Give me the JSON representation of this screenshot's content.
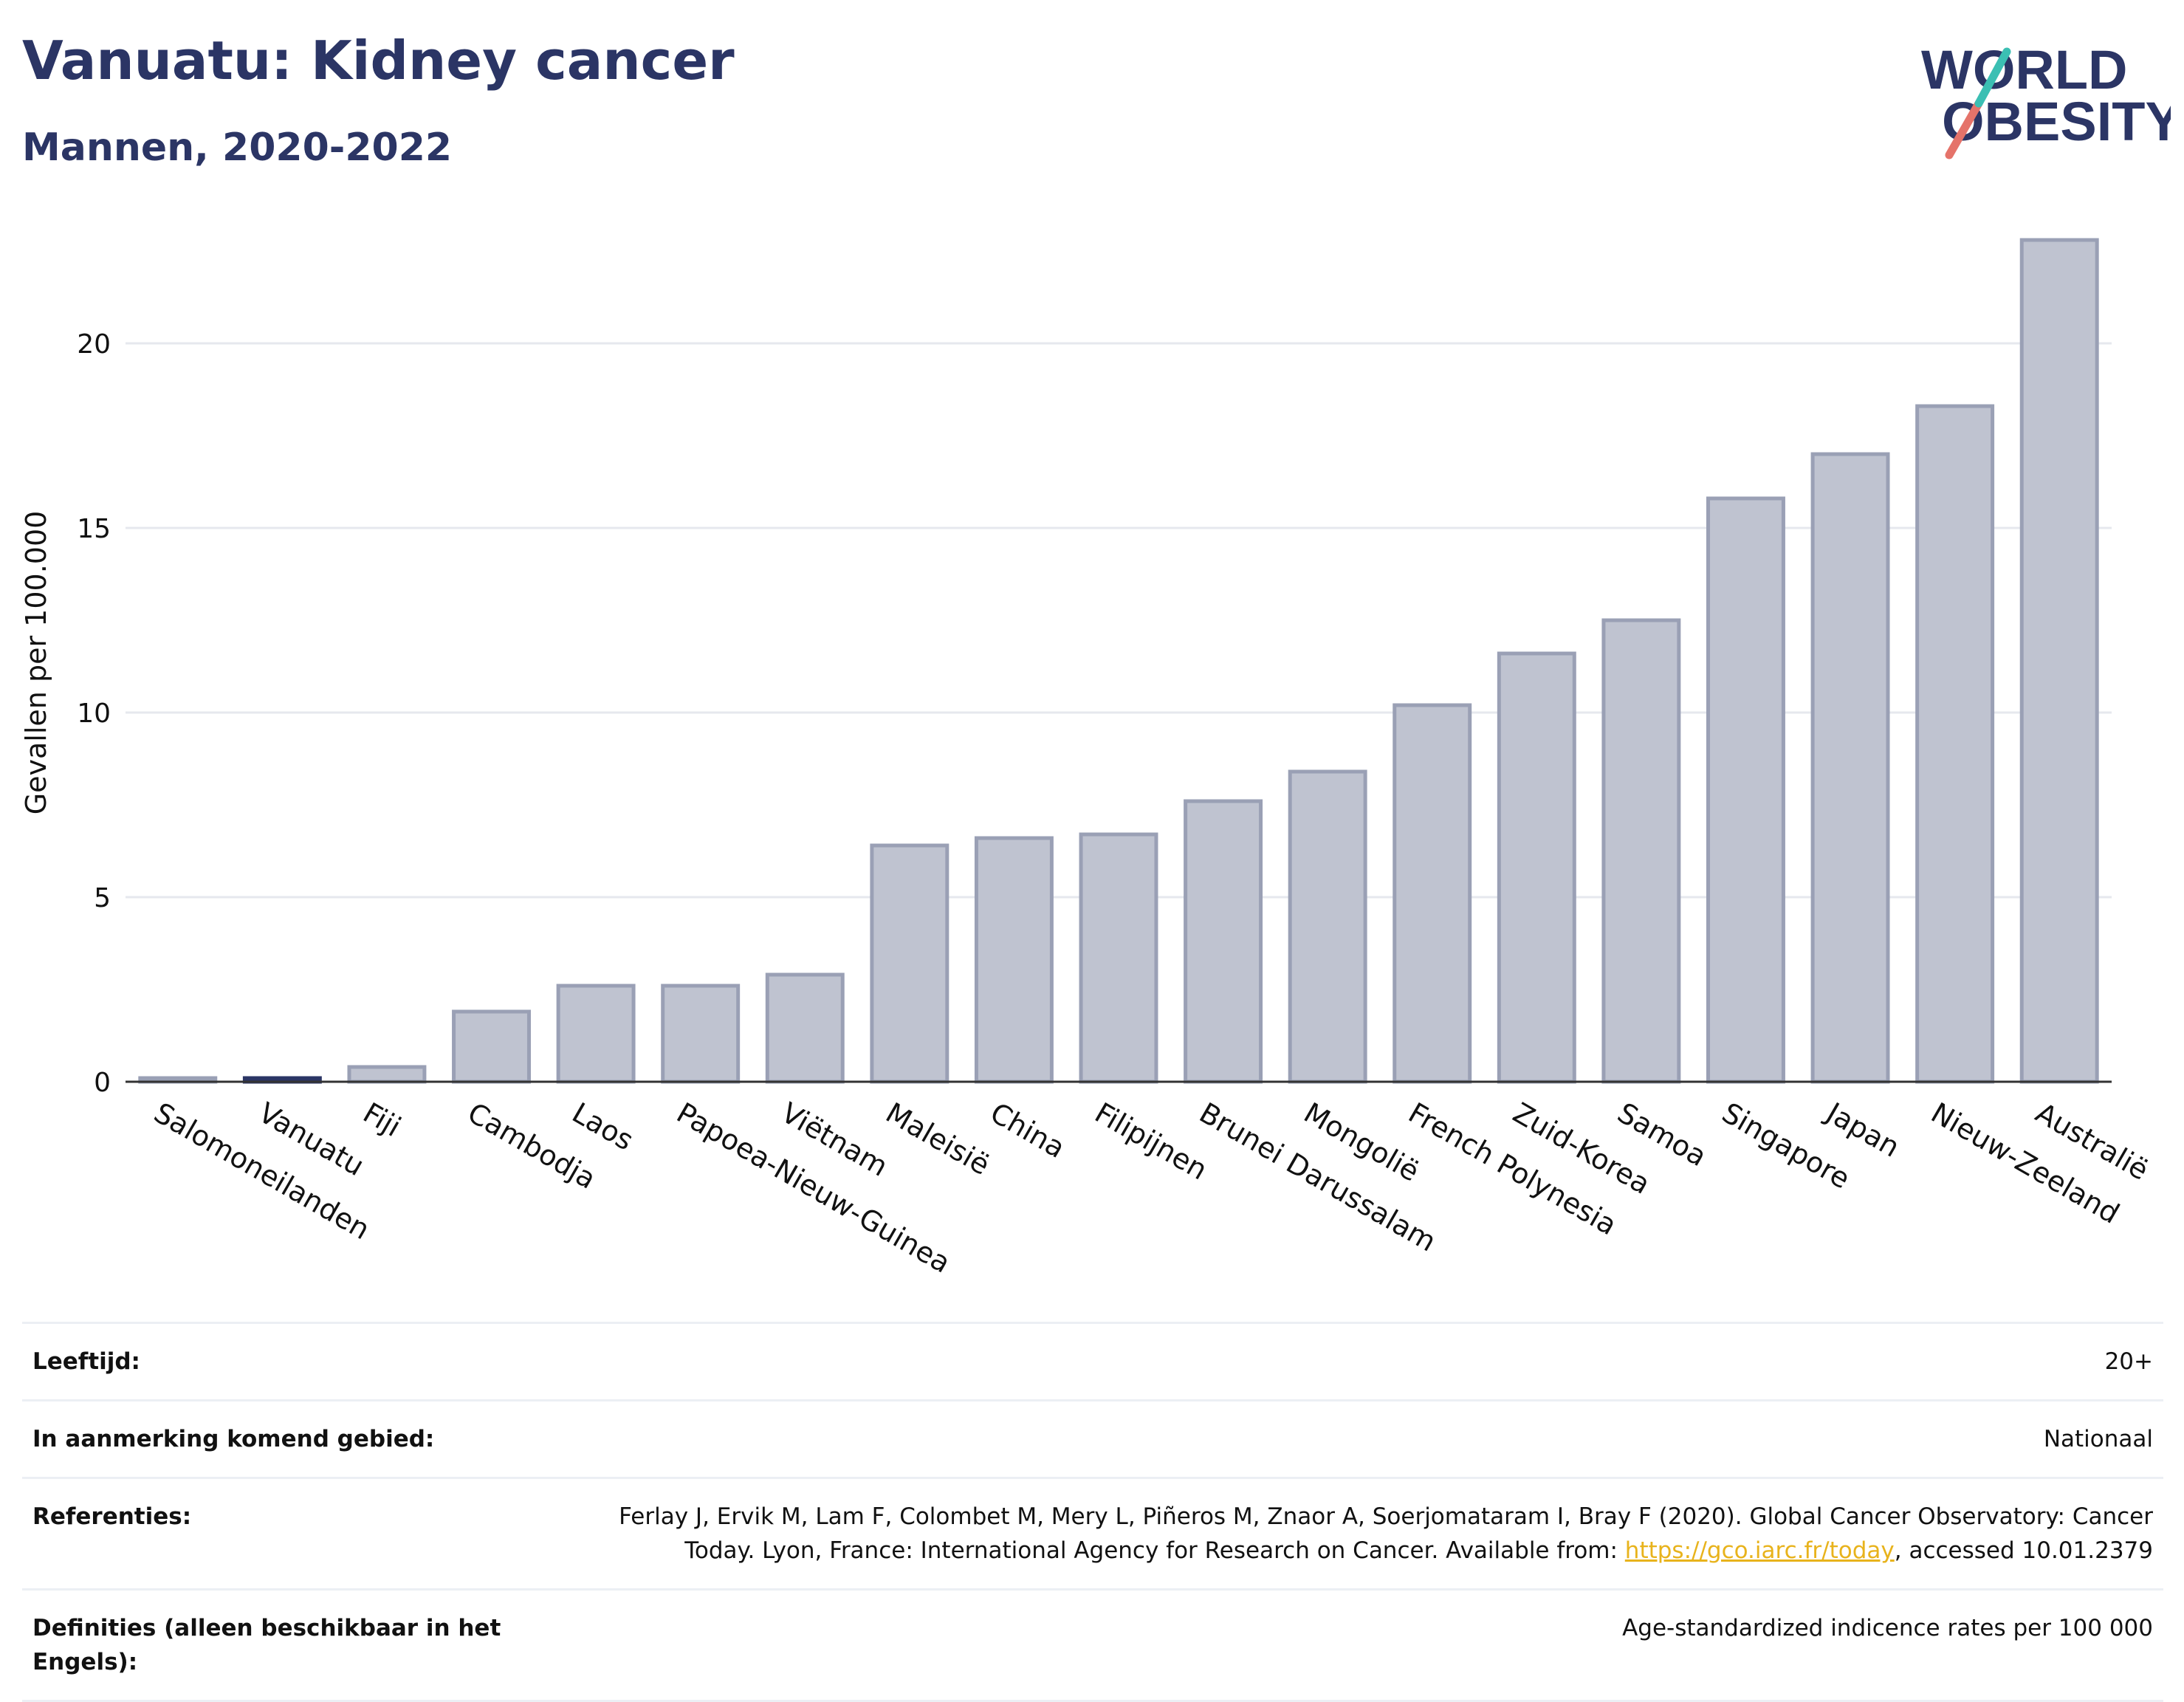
{
  "header": {
    "title": "Vanuatu: Kidney cancer",
    "subtitle": "Mannen, 2020-2022"
  },
  "logo": {
    "line1": "WORLD",
    "line2": "OBESITY"
  },
  "colors": {
    "bar": "#bfc3d0",
    "bar_stroke": "#9aa0b5",
    "highlight": "#2b3565",
    "title": "#2b3565",
    "link": "#e8b31c"
  },
  "chart_data": {
    "type": "bar",
    "categories": [
      "Salomoneilanden",
      "Vanuatu",
      "Fiji",
      "Cambodja",
      "Laos",
      "Papoea-Nieuw-Guinea",
      "Viëtnam",
      "Maleisië",
      "China",
      "Filipijnen",
      "Brunei Darussalam",
      "Mongolië",
      "French Polynesia",
      "Zuid-Korea",
      "Samoa",
      "Singapore",
      "Japan",
      "Nieuw-Zeeland",
      "Australië"
    ],
    "values": [
      0.1,
      0.1,
      0.4,
      1.9,
      2.6,
      2.6,
      2.9,
      6.4,
      6.6,
      6.7,
      7.6,
      8.4,
      10.2,
      11.6,
      12.5,
      15.8,
      17.0,
      18.3,
      22.8
    ],
    "highlight": "Vanuatu",
    "ylabel": "Gevallen per 100.000",
    "xlabel": "",
    "ylim": [
      0,
      23.5
    ],
    "yticks": [
      0,
      5,
      10,
      15,
      20
    ],
    "grid": true
  },
  "meta": {
    "age_label": "Leeftijd:",
    "age_value": "20+",
    "area_label": "In aanmerking komend gebied:",
    "area_value": "Nationaal",
    "ref_label": "Referenties:",
    "ref_line1": "Ferlay J, Ervik M, Lam F, Colombet M, Mery L, Piñeros M, Znaor A, Soerjomataram I, Bray F (2020). Global Cancer Observatory: Cancer",
    "ref_line2_pre": "Today. Lyon, France: International Agency for Research on Cancer. Available from: ",
    "ref_link": "https://gco.iarc.fr/today",
    "ref_line2_post": ", accessed 10.01.2379",
    "def_label": "Definities (alleen beschikbaar in het Engels):",
    "def_value": "Age-standardized indicence rates per 100 000"
  }
}
